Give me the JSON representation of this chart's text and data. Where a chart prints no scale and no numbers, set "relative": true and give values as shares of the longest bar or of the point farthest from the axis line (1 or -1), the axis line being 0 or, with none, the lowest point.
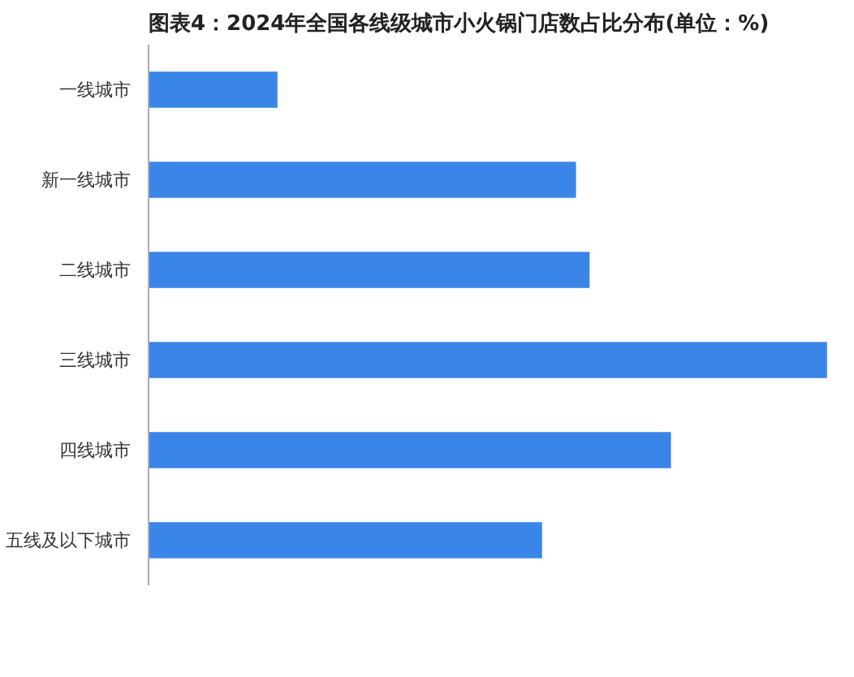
{
  "chart_data": {
    "type": "bar",
    "orientation": "horizontal",
    "relative": true,
    "title": "图表4：2024年全国各线级城市小火锅门店数占比分布(单位：%)",
    "categories": [
      "一线城市",
      "新一线城市",
      "二线城市",
      "三线城市",
      "四线城市",
      "五线及以下城市"
    ],
    "values": [
      0.19,
      0.63,
      0.65,
      1,
      0.77,
      0.58
    ],
    "color": "#3a86e8",
    "grid": false
  }
}
